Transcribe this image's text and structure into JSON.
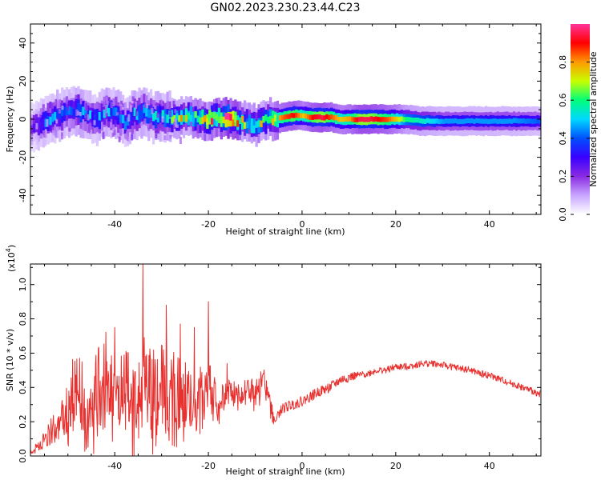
{
  "title": "GN02.2023.230.23.44.C23",
  "colors": {
    "snr_line": "#e8312f",
    "colormap": [
      "#ffffff",
      "#c8a6ff",
      "#8a2be2",
      "#3a00ff",
      "#0050ff",
      "#00d8ff",
      "#00ff7a",
      "#c8ff00",
      "#ff9900",
      "#ff0000",
      "#ff3399"
    ]
  },
  "chart_data": [
    {
      "type": "heatmap",
      "title": "",
      "xlabel": "Height of straight line (km)",
      "ylabel": "Frequency (Hz)",
      "xlim": [
        -58,
        51
      ],
      "ylim": [
        -50,
        50
      ],
      "xticks": [
        "-40",
        "-20",
        "0",
        "20",
        "40"
      ],
      "yticks": [
        "-40",
        "-20",
        "0",
        "20",
        "40"
      ],
      "colorbar": {
        "label": "Normalized spectral amplitude",
        "range": [
          0.0,
          1.0
        ],
        "ticks": [
          "0.0",
          "0.2",
          "0.4",
          "0.6",
          "0.8"
        ]
      },
      "ridge": {
        "x": [
          -58,
          -55,
          -52,
          -50,
          -48,
          -46,
          -44,
          -42,
          -40,
          -38,
          -36,
          -34,
          -32,
          -30,
          -28,
          -26,
          -24,
          -22,
          -20,
          -18,
          -16,
          -14,
          -12,
          -10,
          -8,
          -6,
          -4,
          -2,
          0,
          2,
          4,
          6,
          8,
          10,
          12,
          14,
          16,
          18,
          20,
          22,
          25,
          28,
          30,
          35,
          40,
          45,
          51
        ],
        "frequency": [
          -4,
          -1,
          2,
          4,
          5,
          2,
          0,
          4,
          3,
          -2,
          3,
          4,
          1,
          2,
          1,
          1,
          2,
          0,
          0,
          1,
          0,
          -1,
          -2,
          -3,
          0,
          0,
          1,
          2,
          2,
          1,
          1,
          1,
          0,
          0,
          0,
          0,
          0,
          0,
          0,
          0,
          -1,
          -1,
          -1,
          -1,
          -1,
          -1,
          -1
        ],
        "amplitude": [
          0.25,
          0.4,
          0.45,
          0.4,
          0.5,
          0.45,
          0.4,
          0.5,
          0.45,
          0.4,
          0.5,
          0.45,
          0.45,
          0.5,
          0.6,
          0.7,
          0.65,
          0.7,
          0.85,
          0.8,
          0.95,
          0.8,
          0.6,
          0.65,
          0.7,
          0.75,
          0.85,
          0.9,
          0.75,
          0.9,
          0.95,
          0.85,
          0.75,
          0.8,
          0.95,
          0.95,
          0.9,
          0.85,
          0.75,
          0.6,
          0.55,
          0.5,
          0.45,
          0.45,
          0.45,
          0.45,
          0.4
        ]
      }
    },
    {
      "type": "line",
      "title": "",
      "xlabel": "Height of straight line (km)",
      "ylabel": "SNR (10 * v/v)",
      "yscale_label": "(x10",
      "yscale_exp": "4",
      "xlim": [
        -58,
        51
      ],
      "ylim": [
        0.0,
        1.12
      ],
      "xticks": [
        "-40",
        "-20",
        "0",
        "20",
        "40"
      ],
      "yticks": [
        "0.0",
        "0.2",
        "0.4",
        "0.6",
        "0.8",
        "1.0"
      ],
      "series": [
        {
          "x": [
            -58,
            -55,
            -52,
            -50,
            -48,
            -46,
            -44,
            -42,
            -40,
            -38,
            -36,
            -34,
            -32,
            -30,
            -28,
            -26,
            -24,
            -22,
            -20,
            -18,
            -16,
            -14,
            -12,
            -10,
            -8,
            -6,
            -4,
            -2,
            0,
            2,
            4,
            6,
            8,
            10,
            12,
            14,
            16,
            18,
            20,
            22,
            24,
            26,
            28,
            30,
            32,
            34,
            36,
            38,
            40,
            42,
            44,
            46,
            48,
            51
          ],
          "y": [
            0.02,
            0.1,
            0.2,
            0.3,
            0.45,
            0.2,
            0.35,
            0.5,
            0.3,
            0.4,
            0.3,
            0.45,
            0.4,
            0.35,
            0.4,
            0.35,
            0.38,
            0.3,
            0.45,
            0.3,
            0.38,
            0.35,
            0.4,
            0.35,
            0.42,
            0.22,
            0.28,
            0.3,
            0.32,
            0.35,
            0.38,
            0.4,
            0.44,
            0.46,
            0.47,
            0.48,
            0.5,
            0.5,
            0.52,
            0.52,
            0.53,
            0.54,
            0.54,
            0.53,
            0.52,
            0.51,
            0.5,
            0.48,
            0.47,
            0.45,
            0.43,
            0.41,
            0.39,
            0.36
          ],
          "spread": [
            0.01,
            0.05,
            0.1,
            0.18,
            0.2,
            0.15,
            0.25,
            0.25,
            0.2,
            0.25,
            0.25,
            0.3,
            0.3,
            0.3,
            0.25,
            0.25,
            0.2,
            0.2,
            0.2,
            0.1,
            0.08,
            0.08,
            0.1,
            0.1,
            0.1,
            0.03,
            0.03,
            0.03,
            0.03,
            0.03,
            0.03,
            0.03,
            0.03,
            0.03,
            0.02,
            0.02,
            0.02,
            0.02,
            0.02,
            0.02,
            0.02,
            0.02,
            0.02,
            0.02,
            0.02,
            0.02,
            0.02,
            0.02,
            0.02,
            0.02,
            0.02,
            0.02,
            0.02,
            0.02
          ],
          "peaks": [
            {
              "x": -34,
              "y": 1.12
            },
            {
              "x": -29,
              "y": 0.88
            },
            {
              "x": -20,
              "y": 0.9
            },
            {
              "x": -40,
              "y": 0.75
            },
            {
              "x": -26,
              "y": 0.77
            },
            {
              "x": -23,
              "y": 0.75
            },
            {
              "x": -47,
              "y": 0.55
            },
            {
              "x": -16,
              "y": 0.54
            }
          ]
        }
      ]
    }
  ]
}
